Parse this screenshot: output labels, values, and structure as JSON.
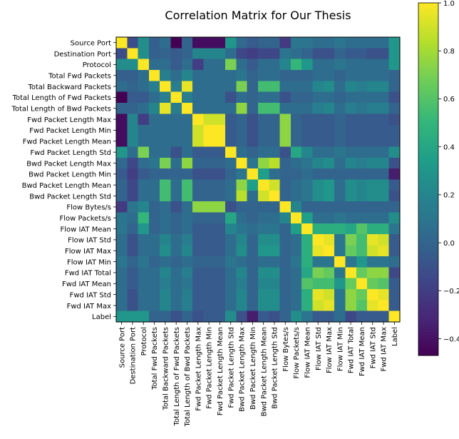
{
  "chart_data": {
    "type": "heatmap",
    "title": "Correlation Matrix for Our Thesis",
    "labels": [
      "Source Port",
      "Destination Port",
      "Protocol",
      "Total Fwd Packets",
      "Total Backward Packets",
      "Total Length of Fwd Packets",
      "Total Length of Bwd Packets",
      "Fwd Packet Length Max",
      "Fwd Packet Length Min",
      "Fwd Packet Length Mean",
      "Fwd Packet Length Std",
      "Bwd Packet Length Max",
      "Bwd Packet Length Min",
      "Bwd Packet Length Mean",
      "Bwd Packet Length Std",
      "Flow Bytes/s",
      "Flow Packets/s",
      "Flow IAT Mean",
      "Flow IAT Std",
      "Flow IAT Max",
      "Flow IAT Min",
      "Fwd IAT Total",
      "Fwd IAT Mean",
      "Fwd IAT Std",
      "Fwd IAT Max",
      "Label"
    ],
    "matrix": [
      [
        1.0,
        -0.12,
        0.25,
        -0.02,
        0.05,
        -0.47,
        0.0,
        -0.42,
        -0.42,
        -0.42,
        0.3,
        0.02,
        -0.05,
        0.0,
        0.0,
        -0.22,
        0.1,
        0.1,
        0.05,
        0.05,
        0.1,
        0.05,
        0.05,
        0.05,
        0.05,
        0.3
      ],
      [
        -0.12,
        1.0,
        0.25,
        -0.02,
        0.0,
        -0.05,
        0.0,
        0.2,
        0.2,
        0.2,
        0.05,
        -0.15,
        -0.2,
        -0.15,
        -0.15,
        0.1,
        0.05,
        0.0,
        -0.1,
        -0.1,
        0.0,
        -0.05,
        -0.05,
        -0.1,
        -0.1,
        0.3
      ],
      [
        0.25,
        0.25,
        1.0,
        0.05,
        0.05,
        -0.05,
        0.05,
        -0.2,
        0.05,
        0.05,
        0.7,
        0.05,
        -0.05,
        0.05,
        0.05,
        0.2,
        0.5,
        0.3,
        0.05,
        0.05,
        0.1,
        0.05,
        0.05,
        0.05,
        0.05,
        0.3
      ],
      [
        -0.02,
        -0.02,
        0.05,
        1.0,
        0.15,
        0.05,
        0.2,
        0.05,
        0.05,
        0.05,
        0.05,
        0.1,
        0.0,
        0.05,
        0.05,
        0.0,
        0.0,
        0.0,
        0.05,
        0.05,
        0.0,
        0.05,
        0.05,
        0.05,
        0.05,
        0.0
      ],
      [
        0.05,
        0.0,
        0.05,
        0.15,
        1.0,
        0.15,
        0.95,
        0.05,
        0.05,
        0.05,
        0.05,
        0.7,
        0.0,
        0.55,
        0.55,
        0.05,
        0.05,
        0.05,
        0.2,
        0.25,
        0.05,
        0.2,
        0.15,
        0.2,
        0.2,
        0.0
      ],
      [
        -0.47,
        -0.05,
        -0.05,
        0.05,
        0.15,
        1.0,
        0.15,
        0.05,
        0.05,
        0.05,
        -0.1,
        0.05,
        0.0,
        0.05,
        0.05,
        -0.1,
        0.0,
        0.0,
        0.05,
        0.05,
        0.0,
        0.05,
        0.05,
        0.05,
        0.05,
        -0.1
      ],
      [
        0.0,
        0.0,
        0.05,
        0.2,
        0.95,
        0.15,
        1.0,
        0.05,
        0.05,
        0.05,
        0.05,
        0.75,
        0.0,
        0.55,
        0.55,
        0.05,
        0.05,
        0.05,
        0.15,
        0.2,
        0.05,
        0.15,
        0.1,
        0.15,
        0.15,
        0.0
      ],
      [
        -0.42,
        0.2,
        -0.2,
        0.05,
        0.05,
        0.05,
        0.05,
        1.0,
        0.9,
        0.9,
        -0.05,
        0.0,
        -0.1,
        0.0,
        0.0,
        0.75,
        0.0,
        -0.05,
        -0.05,
        -0.05,
        0.0,
        -0.05,
        -0.05,
        -0.05,
        -0.05,
        -0.1
      ],
      [
        -0.42,
        0.2,
        0.05,
        0.05,
        0.05,
        0.05,
        0.05,
        0.9,
        1.0,
        1.0,
        -0.05,
        0.0,
        -0.1,
        0.0,
        0.0,
        0.75,
        0.0,
        -0.05,
        -0.05,
        -0.05,
        0.0,
        -0.05,
        -0.05,
        -0.05,
        -0.05,
        -0.05
      ],
      [
        -0.42,
        0.2,
        0.05,
        0.05,
        0.05,
        0.05,
        0.05,
        0.9,
        1.0,
        1.0,
        -0.05,
        0.0,
        -0.1,
        0.0,
        0.0,
        0.75,
        0.0,
        -0.05,
        -0.05,
        -0.05,
        0.0,
        -0.05,
        -0.05,
        -0.05,
        -0.05,
        -0.05
      ],
      [
        0.3,
        0.05,
        0.7,
        0.05,
        0.05,
        -0.1,
        0.05,
        -0.05,
        -0.05,
        -0.05,
        1.0,
        0.05,
        0.0,
        0.05,
        0.05,
        -0.1,
        0.4,
        0.2,
        0.05,
        0.05,
        0.1,
        0.05,
        0.05,
        0.05,
        0.05,
        0.25
      ],
      [
        0.02,
        -0.15,
        0.05,
        0.1,
        0.7,
        0.05,
        0.75,
        0.0,
        0.0,
        0.0,
        0.05,
        1.0,
        0.1,
        0.75,
        0.85,
        0.0,
        0.05,
        0.1,
        0.2,
        0.25,
        0.05,
        0.2,
        0.15,
        0.2,
        0.2,
        -0.1
      ],
      [
        -0.05,
        -0.2,
        -0.05,
        0.0,
        0.0,
        0.0,
        0.0,
        -0.1,
        -0.1,
        -0.1,
        0.0,
        0.1,
        1.0,
        0.35,
        0.05,
        0.0,
        0.0,
        0.05,
        0.0,
        0.0,
        0.0,
        0.0,
        0.0,
        0.0,
        0.0,
        -0.35
      ],
      [
        0.0,
        -0.15,
        0.05,
        0.05,
        0.55,
        0.05,
        0.55,
        0.0,
        0.0,
        0.0,
        0.05,
        0.75,
        0.35,
        1.0,
        0.9,
        0.0,
        0.05,
        0.1,
        0.25,
        0.3,
        0.05,
        0.25,
        0.2,
        0.25,
        0.25,
        -0.05
      ],
      [
        0.0,
        -0.15,
        0.05,
        0.05,
        0.55,
        0.05,
        0.55,
        0.0,
        0.0,
        0.0,
        0.05,
        0.85,
        0.05,
        0.9,
        1.0,
        0.0,
        0.05,
        0.1,
        0.25,
        0.3,
        0.05,
        0.25,
        0.2,
        0.25,
        0.25,
        -0.1
      ],
      [
        -0.22,
        0.1,
        0.2,
        0.0,
        0.05,
        -0.1,
        0.05,
        0.75,
        0.75,
        0.75,
        -0.1,
        0.0,
        0.0,
        0.0,
        0.0,
        1.0,
        0.2,
        0.0,
        0.0,
        0.0,
        0.0,
        0.0,
        0.0,
        0.0,
        0.0,
        0.0
      ],
      [
        0.1,
        0.05,
        0.5,
        0.0,
        0.05,
        0.0,
        0.05,
        0.0,
        0.0,
        0.0,
        0.4,
        0.05,
        0.0,
        0.05,
        0.05,
        0.2,
        1.0,
        0.35,
        0.05,
        0.05,
        0.1,
        0.05,
        0.05,
        0.05,
        0.05,
        0.25
      ],
      [
        0.1,
        0.0,
        0.3,
        0.0,
        0.05,
        0.0,
        0.05,
        -0.05,
        -0.05,
        -0.05,
        0.2,
        0.1,
        0.05,
        0.1,
        0.1,
        0.0,
        0.35,
        1.0,
        0.45,
        0.45,
        0.45,
        0.4,
        0.6,
        0.45,
        0.45,
        0.1
      ],
      [
        0.05,
        -0.1,
        0.05,
        0.05,
        0.2,
        0.05,
        0.15,
        -0.05,
        -0.05,
        -0.05,
        0.05,
        0.2,
        0.0,
        0.25,
        0.25,
        0.0,
        0.05,
        0.45,
        1.0,
        0.95,
        0.1,
        0.7,
        0.55,
        0.95,
        0.9,
        -0.05
      ],
      [
        0.05,
        -0.1,
        0.05,
        0.05,
        0.25,
        0.05,
        0.2,
        -0.05,
        -0.05,
        -0.05,
        0.05,
        0.25,
        0.0,
        0.3,
        0.3,
        0.0,
        0.05,
        0.45,
        0.95,
        1.0,
        0.1,
        0.65,
        0.55,
        0.9,
        0.95,
        -0.05
      ],
      [
        0.1,
        0.0,
        0.1,
        0.0,
        0.05,
        0.0,
        0.05,
        0.0,
        0.0,
        0.0,
        0.1,
        0.05,
        0.0,
        0.05,
        0.05,
        0.0,
        0.1,
        0.45,
        0.1,
        0.1,
        1.0,
        0.1,
        0.3,
        0.1,
        0.1,
        0.05
      ],
      [
        0.05,
        -0.05,
        0.05,
        0.05,
        0.2,
        0.05,
        0.15,
        -0.05,
        -0.05,
        -0.05,
        0.05,
        0.2,
        0.0,
        0.25,
        0.25,
        0.0,
        0.05,
        0.4,
        0.7,
        0.65,
        0.1,
        1.0,
        0.65,
        0.75,
        0.75,
        -0.15
      ],
      [
        0.05,
        -0.05,
        0.05,
        0.05,
        0.15,
        0.05,
        0.1,
        -0.05,
        -0.05,
        -0.05,
        0.05,
        0.15,
        0.0,
        0.2,
        0.2,
        0.0,
        0.05,
        0.6,
        0.55,
        0.55,
        0.3,
        0.65,
        1.0,
        0.65,
        0.6,
        -0.05
      ],
      [
        0.05,
        -0.1,
        0.05,
        0.05,
        0.2,
        0.05,
        0.15,
        -0.05,
        -0.05,
        -0.05,
        0.05,
        0.2,
        0.0,
        0.25,
        0.25,
        0.0,
        0.05,
        0.45,
        0.95,
        0.9,
        0.1,
        0.75,
        0.65,
        1.0,
        0.95,
        -0.05
      ],
      [
        0.05,
        -0.1,
        0.05,
        0.05,
        0.2,
        0.05,
        0.15,
        -0.05,
        -0.05,
        -0.05,
        0.05,
        0.2,
        0.0,
        0.25,
        0.25,
        0.0,
        0.05,
        0.45,
        0.9,
        0.95,
        0.1,
        0.75,
        0.6,
        0.95,
        1.0,
        -0.05
      ],
      [
        0.3,
        0.3,
        0.3,
        0.0,
        0.0,
        -0.1,
        0.0,
        -0.1,
        -0.05,
        -0.05,
        0.25,
        -0.1,
        -0.35,
        -0.05,
        -0.1,
        0.0,
        0.25,
        0.1,
        -0.05,
        -0.05,
        0.05,
        -0.15,
        -0.05,
        -0.05,
        -0.05,
        1.0
      ]
    ],
    "colorbar": {
      "colormap": "viridis",
      "range": [
        -0.47,
        1.0
      ],
      "ticks": [
        -0.4,
        -0.2,
        0.0,
        0.2,
        0.4,
        0.6,
        0.8,
        1.0
      ],
      "tick_labels": [
        "−0.4",
        "−0.2",
        "0.0",
        "0.2",
        "0.4",
        "0.6",
        "0.8",
        "1.0"
      ]
    },
    "grid": false
  }
}
